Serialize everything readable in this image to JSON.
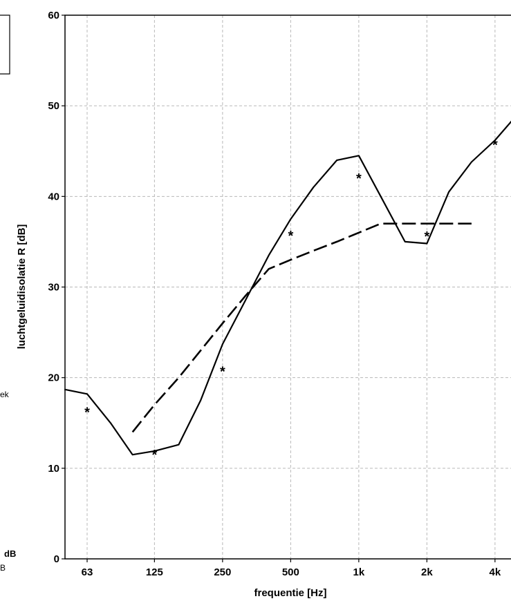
{
  "chart_data": {
    "type": "line",
    "ylabel": "luchtgeluidisolatie R [dB]",
    "xlabel": "frequentie [Hz]",
    "ylim": [
      0,
      60
    ],
    "yticks": [
      0,
      10,
      20,
      30,
      40,
      50,
      60
    ],
    "x_scale": "log2-octave",
    "xticks": [
      {
        "value": 63,
        "label": "63"
      },
      {
        "value": 125,
        "label": "125"
      },
      {
        "value": 250,
        "label": "250"
      },
      {
        "value": 500,
        "label": "500"
      },
      {
        "value": 1000,
        "label": "1k"
      },
      {
        "value": 2000,
        "label": "2k"
      },
      {
        "value": 4000,
        "label": "4k"
      }
    ],
    "grid": true,
    "series": [
      {
        "style": "solid",
        "x": [
          50,
          63,
          80,
          100,
          125,
          160,
          200,
          250,
          315,
          400,
          500,
          630,
          800,
          1000,
          1250,
          1600,
          2000,
          2500,
          3150,
          4000,
          5000
        ],
        "y": [
          18.7,
          18.2,
          15,
          11.5,
          11.9,
          12.6,
          17.5,
          23.7,
          28.5,
          33.5,
          37.5,
          41,
          44,
          44.5,
          40,
          35,
          34.8,
          40.5,
          43.8,
          46.2,
          49
        ]
      },
      {
        "style": "dashed",
        "x": [
          100,
          125,
          160,
          200,
          250,
          315,
          400,
          500,
          630,
          800,
          1000,
          1250,
          1600,
          2000,
          2500,
          3150
        ],
        "y": [
          14,
          17,
          20,
          23,
          26,
          29,
          32,
          33,
          34,
          35,
          36,
          37,
          37,
          37,
          37,
          37
        ]
      },
      {
        "style": "markers",
        "marker": "*",
        "x": [
          63,
          125,
          250,
          500,
          1000,
          2000,
          4000
        ],
        "y": [
          16.5,
          11.8,
          21,
          36,
          42.3,
          35.9,
          46
        ]
      }
    ]
  },
  "side": {
    "fragment_ek": "ek",
    "fragment_db": "dB",
    "fragment_b": "B"
  }
}
